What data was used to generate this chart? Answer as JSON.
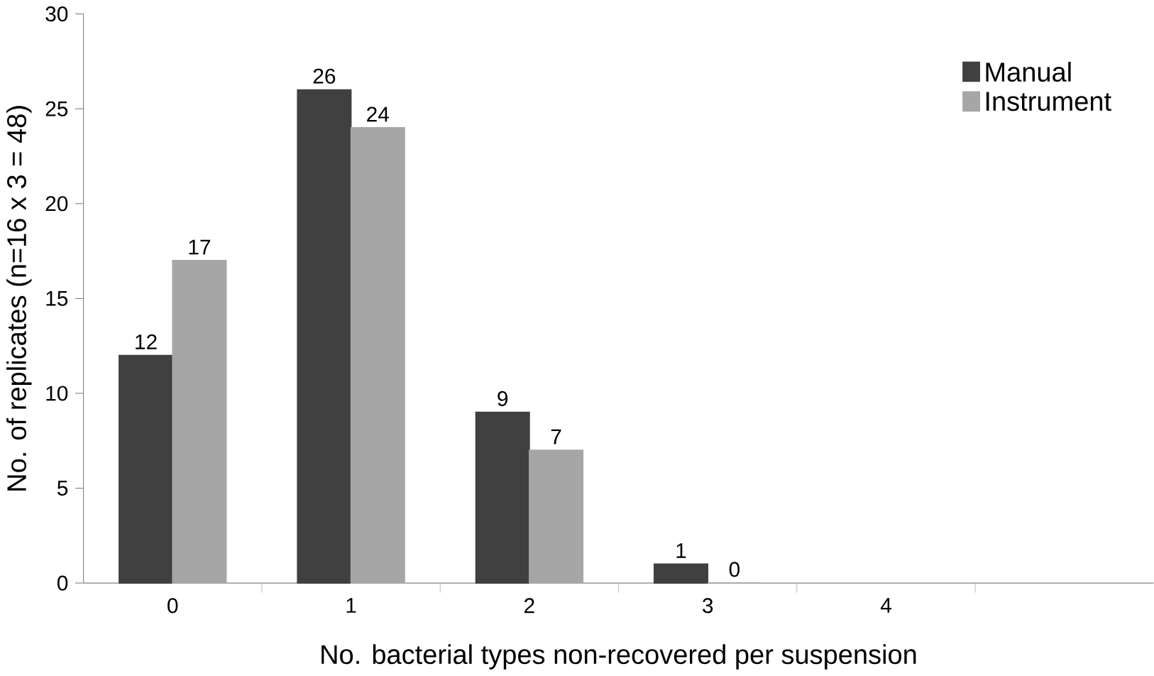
{
  "chart_data": {
    "type": "bar",
    "xlabel": "No. bacterial types non-recovered per suspension",
    "ylabel": "No. of replicates (n=16 x 3 = 48)",
    "categories": [
      "0",
      "1",
      "2",
      "3",
      "4",
      null
    ],
    "series": [
      {
        "name": "Manual",
        "color": "#404040",
        "values": [
          12,
          26,
          9,
          1,
          null,
          null
        ]
      },
      {
        "name": "Instrument",
        "color": "#a6a6a6",
        "values": [
          17,
          24,
          7,
          0,
          null,
          null
        ]
      }
    ],
    "ylim": [
      0,
      30
    ],
    "yticks": [
      0,
      5,
      10,
      15,
      20,
      25,
      30
    ],
    "data_labels": true,
    "legend": "top right",
    "grid": false
  }
}
